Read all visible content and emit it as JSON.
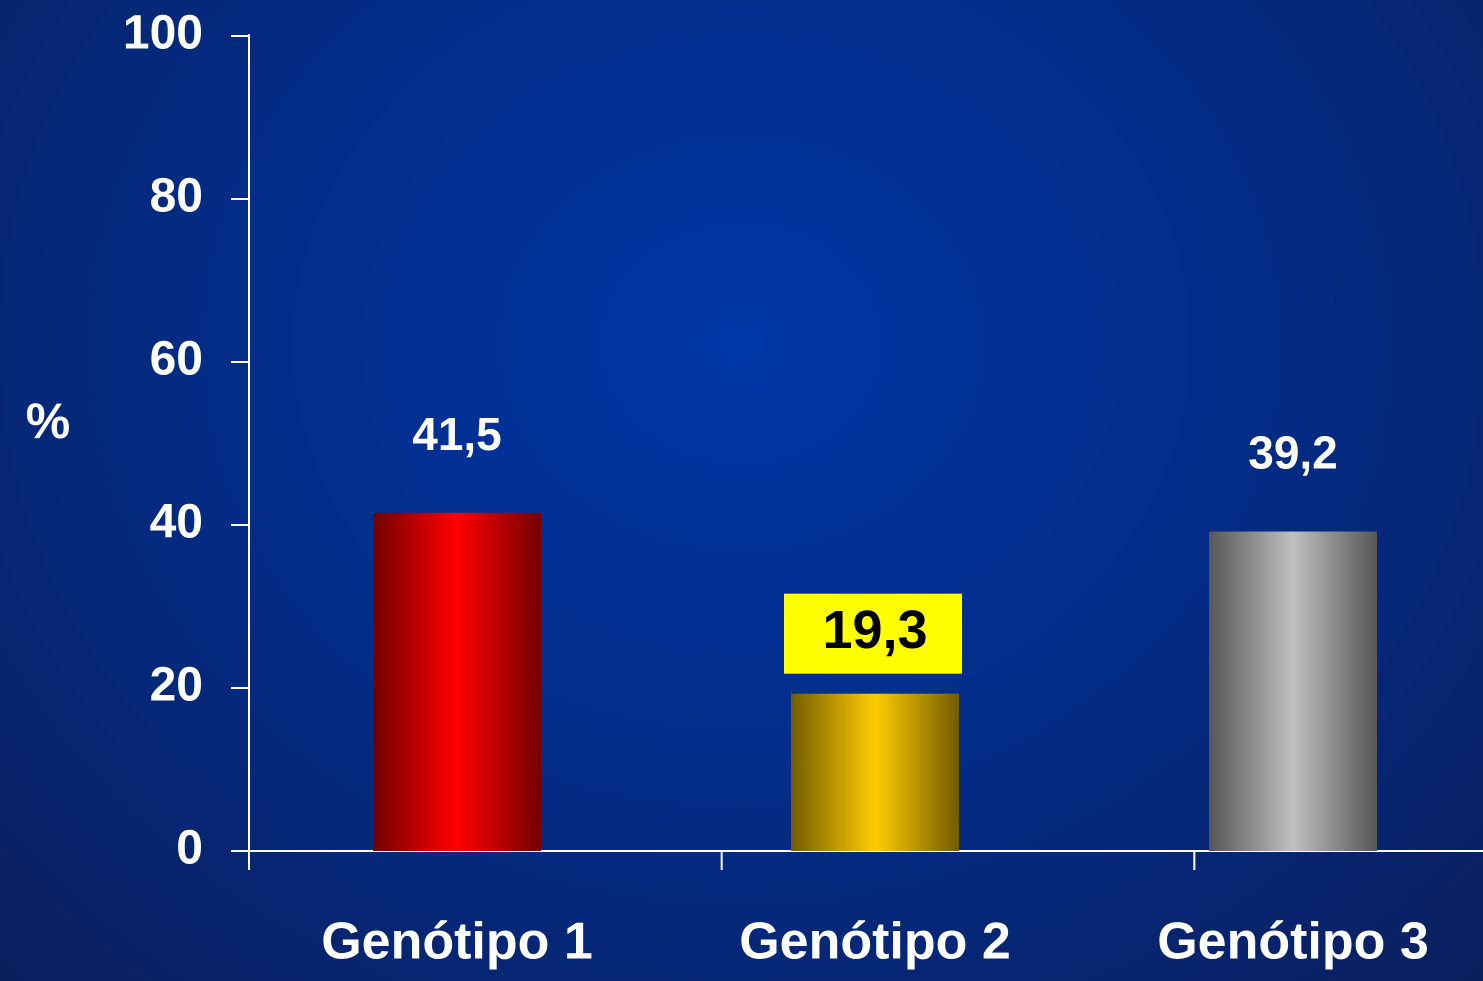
{
  "chart_data": {
    "type": "bar",
    "y_label": "%",
    "categories": [
      "Genótipo 1",
      "Genótipo 2",
      "Genótipo 3"
    ],
    "values": [
      41.5,
      19.3,
      39.2
    ],
    "value_labels": [
      "41,5",
      "19,3",
      "39,2"
    ],
    "colors": [
      "#ff0000",
      "#ffcc00",
      "#c0c0c0"
    ],
    "value_label_backgrounds": [
      null,
      "#ffff00",
      null
    ],
    "ylim": [
      0,
      100
    ],
    "yticks": [
      0,
      20,
      40,
      60,
      80,
      100
    ],
    "grid": false
  }
}
